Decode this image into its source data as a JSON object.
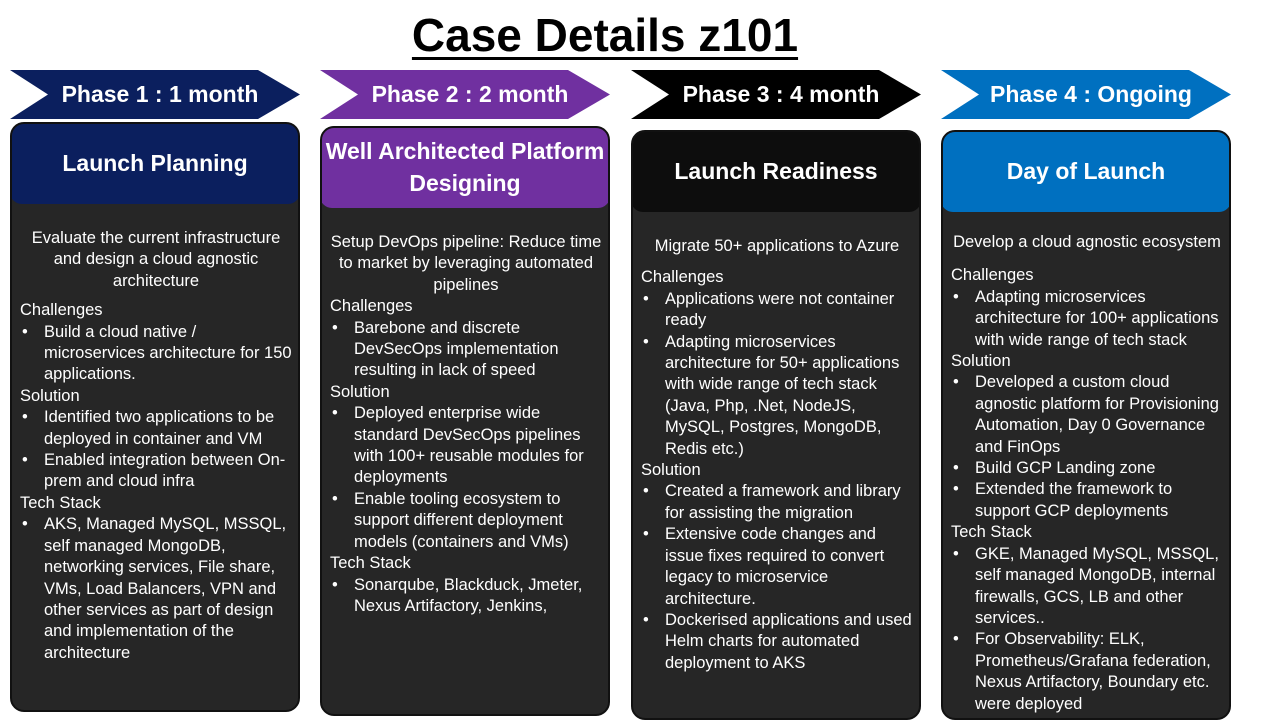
{
  "page": {
    "title": "Case Details z101"
  },
  "phases": [
    {
      "chevron": "Phase 1 : 1 month",
      "heading": "Launch Planning",
      "intro": "Evaluate the current infrastructure and design a cloud agnostic architecture",
      "challenges_label": "Challenges",
      "challenges": [
        "Build a cloud native / microservices architecture for 150 applications."
      ],
      "solution_label": "Solution",
      "solution": [
        "Identified two applications to be deployed in container and VM",
        "Enabled integration between On-prem and cloud infra"
      ],
      "tech_label": "Tech Stack",
      "tech": [
        "AKS, Managed MySQL, MSSQL, self managed MongoDB, networking services, File share, VMs, Load Balancers, VPN and other services as part of design and implementation of the architecture"
      ]
    },
    {
      "chevron": "Phase 2 : 2 month",
      "heading": "Well Architected Platform Designing",
      "intro": "Setup DevOps pipeline: Reduce time to market by leveraging automated pipelines",
      "challenges_label": "Challenges",
      "challenges": [
        "Barebone and discrete DevSecOps implementation resulting in lack of speed"
      ],
      "solution_label": "Solution",
      "solution": [
        "Deployed enterprise wide standard DevSecOps pipelines with 100+ reusable modules for deployments",
        "Enable tooling ecosystem to support different deployment models (containers and VMs)"
      ],
      "tech_label": "Tech Stack",
      "tech": [
        "Sonarqube, Blackduck, Jmeter, Nexus Artifactory, Jenkins,"
      ]
    },
    {
      "chevron": "Phase 3 : 4 month",
      "heading": "Launch Readiness",
      "intro": "Migrate 50+ applications to Azure",
      "challenges_label": "Challenges",
      "challenges": [
        "Applications were not container ready",
        "Adapting microservices architecture for 50+ applications with wide range of tech stack (Java, Php, .Net, NodeJS, MySQL, Postgres, MongoDB, Redis etc.)"
      ],
      "solution_label": "Solution",
      "solution": [
        "Created a framework and library for assisting the migration",
        "Extensive code changes and issue fixes required to convert legacy to microservice architecture.",
        "Dockerised applications and used Helm charts for automated deployment to AKS"
      ],
      "tech_label": "",
      "tech": []
    },
    {
      "chevron": "Phase 4 : Ongoing",
      "heading": "Day of Launch",
      "intro": "Develop a cloud agnostic ecosystem",
      "challenges_label": "Challenges",
      "challenges": [
        "Adapting microservices architecture for 100+ applications with wide range of tech stack"
      ],
      "solution_label": "Solution",
      "solution": [
        "Developed a custom cloud agnostic platform for Provisioning Automation, Day 0 Governance and FinOps",
        "Build GCP Landing zone",
        "Extended the framework to support GCP deployments"
      ],
      "tech_label": "Tech Stack",
      "tech": [
        "GKE, Managed MySQL, MSSQL, self managed MongoDB, internal firewalls, GCS, LB and other services..",
        "For Observability:  ELK, Prometheus/Grafana federation, Nexus Artifactory, Boundary etc. were deployed"
      ]
    }
  ],
  "colors": {
    "chevrons": [
      "#0b1f5e",
      "#7030a0",
      "#000000",
      "#0070c0"
    ],
    "heads": [
      "#0b1f5e",
      "#7030a0",
      "#0d0d0d",
      "#0070c0"
    ],
    "card_bg": "#262626",
    "text": "#ffffff"
  }
}
